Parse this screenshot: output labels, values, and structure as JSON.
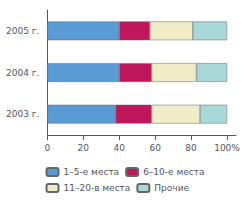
{
  "chart_data": {
    "type": "bar",
    "orientation": "horizontal",
    "stacked": true,
    "categories": [
      "2003 г.",
      "2004 г.",
      "2005 г."
    ],
    "series": [
      {
        "name": "1–5-е места",
        "color": "#5B9BD5",
        "values": [
          38,
          40,
          40
        ]
      },
      {
        "name": "6–10-е места",
        "color": "#C0165C",
        "values": [
          20,
          18,
          17
        ]
      },
      {
        "name": "11–20-в места",
        "color": "#F0ECC8",
        "values": [
          27,
          25,
          24
        ]
      },
      {
        "name": "Прочие",
        "color": "#A8D8D8",
        "values": [
          15,
          17,
          19
        ]
      }
    ],
    "xlim": [
      0,
      105
    ],
    "xticks": [
      0,
      20,
      40,
      60,
      80,
      {
        "value": 100,
        "label": "100%"
      }
    ],
    "grid": false,
    "legend": "bottom"
  }
}
